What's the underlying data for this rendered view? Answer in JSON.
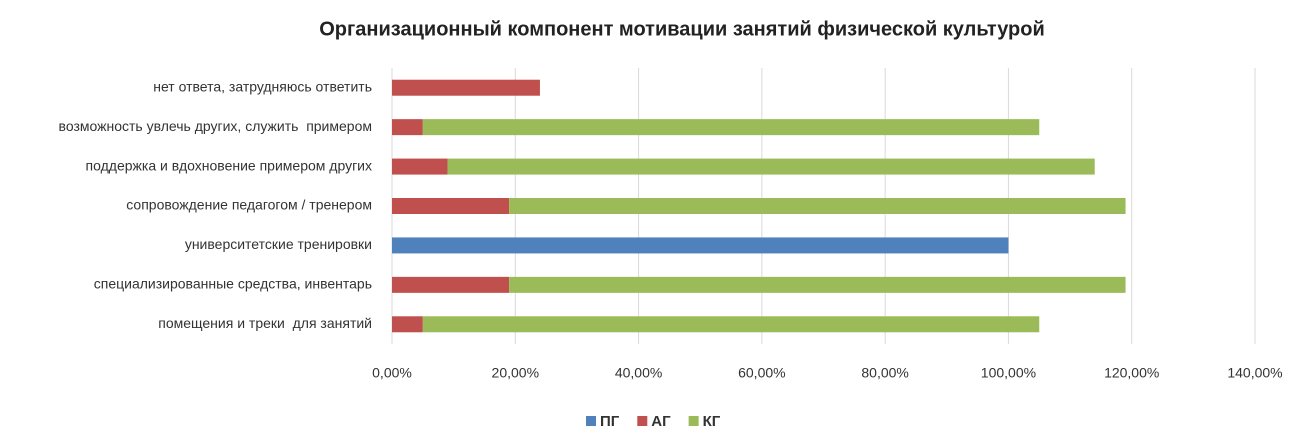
{
  "chart_data": {
    "type": "stacked-barh",
    "title": "Организационный компонент мотивации занятий физической культурой",
    "categories": [
      "нет ответа, затрудняюсь ответить",
      "возможность увлечь других, служить  примером",
      "поддержка и вдохновение примером других",
      "сопровождение педагогом / тренером",
      "университетские тренировки",
      "специализированные средства, инвентарь",
      "помещения и треки  для занятий"
    ],
    "series": [
      {
        "name": "ПГ",
        "color": "#4f81bd",
        "values": [
          null,
          null,
          null,
          null,
          100,
          null,
          null
        ]
      },
      {
        "name": "АГ",
        "color": "#c0504d",
        "values": [
          24,
          5,
          9,
          19,
          null,
          19,
          5
        ]
      },
      {
        "name": "КГ",
        "color": "#9bbb59",
        "values": [
          null,
          100,
          105,
          100,
          null,
          100,
          100
        ]
      }
    ],
    "xlim": [
      0,
      140
    ],
    "xticks": [
      {
        "value": 0,
        "label": "0,00%"
      },
      {
        "value": 20,
        "label": "20,00%"
      },
      {
        "value": 40,
        "label": "40,00%"
      },
      {
        "value": 60,
        "label": "60,00%"
      },
      {
        "value": 80,
        "label": "80,00%"
      },
      {
        "value": 100,
        "label": "100,00%"
      },
      {
        "value": 120,
        "label": "120,00%"
      },
      {
        "value": 140,
        "label": "140,00%"
      }
    ],
    "grid": true,
    "legend": "bottom"
  }
}
